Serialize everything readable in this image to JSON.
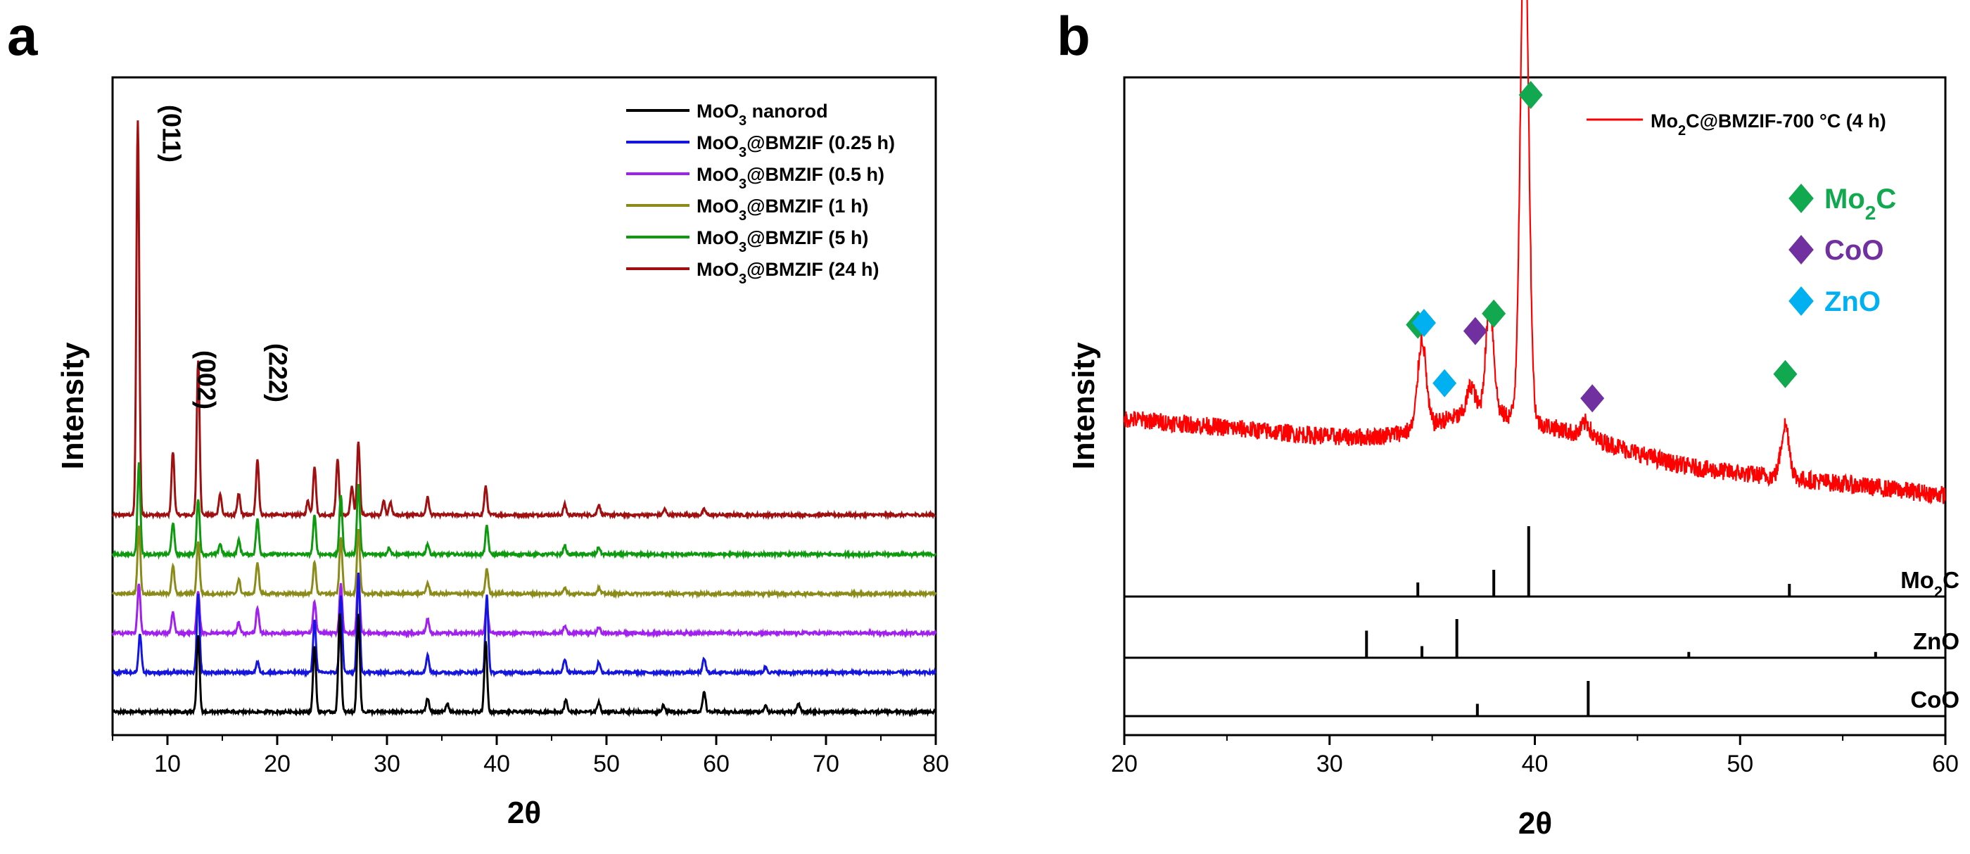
{
  "chart_data": [
    {
      "panel": "a",
      "type": "line",
      "xlabel": "2θ",
      "ylabel": "Intensity",
      "xlim": [
        5,
        80
      ],
      "x_ticks": [
        10,
        20,
        30,
        40,
        50,
        60,
        70,
        80
      ],
      "y_ticks_shown": false,
      "legend_position": "top-right",
      "series": [
        {
          "name": "MoO3 nanorod",
          "name_main": "MoO",
          "name_sub": "3",
          "name_rest": " nanorod",
          "color": "#000000",
          "offset": 0,
          "peaks": [
            [
              12.8,
              110
            ],
            [
              23.4,
              95
            ],
            [
              25.7,
              140
            ],
            [
              27.4,
              140
            ],
            [
              33.7,
              20
            ],
            [
              35.5,
              12
            ],
            [
              39.0,
              100
            ],
            [
              46.3,
              18
            ],
            [
              49.3,
              15
            ],
            [
              55.2,
              10
            ],
            [
              58.9,
              30
            ],
            [
              64.5,
              10
            ],
            [
              67.5,
              12
            ]
          ]
        },
        {
          "name": "MoO3@BMZIF (0.25 h)",
          "name_main": "MoO",
          "name_sub": "3",
          "name_rest": "@BMZIF (0.25 h)",
          "color": "#1515e0",
          "offset": 1,
          "peaks": [
            [
              7.5,
              55
            ],
            [
              12.8,
              110
            ],
            [
              18.2,
              15
            ],
            [
              23.4,
              75
            ],
            [
              25.8,
              110
            ],
            [
              27.4,
              140
            ],
            [
              33.7,
              25
            ],
            [
              39.1,
              110
            ],
            [
              46.2,
              20
            ],
            [
              49.3,
              15
            ],
            [
              58.9,
              20
            ],
            [
              64.5,
              8
            ]
          ]
        },
        {
          "name": "MoO3@BMZIF (0.5 h)",
          "name_main": "MoO",
          "name_sub": "3",
          "name_rest": "@BMZIF (0.5 h)",
          "color": "#a020f0",
          "offset": 2,
          "peaks": [
            [
              7.4,
              70
            ],
            [
              10.5,
              30
            ],
            [
              12.8,
              60
            ],
            [
              16.5,
              15
            ],
            [
              18.2,
              35
            ],
            [
              23.4,
              45
            ],
            [
              25.8,
              70
            ],
            [
              27.4,
              85
            ],
            [
              33.7,
              20
            ],
            [
              39.1,
              40
            ],
            [
              46.2,
              10
            ],
            [
              49.3,
              8
            ]
          ]
        },
        {
          "name": "MoO3@BMZIF (1 h)",
          "name_main": "MoO",
          "name_sub": "3",
          "name_rest": "@BMZIF (1 h)",
          "color": "#8b8b1a",
          "offset": 3,
          "peaks": [
            [
              7.4,
              95
            ],
            [
              10.5,
              40
            ],
            [
              12.8,
              75
            ],
            [
              16.5,
              20
            ],
            [
              18.2,
              45
            ],
            [
              23.4,
              45
            ],
            [
              25.8,
              80
            ],
            [
              27.4,
              90
            ],
            [
              33.7,
              15
            ],
            [
              39.1,
              35
            ],
            [
              46.2,
              10
            ],
            [
              49.3,
              8
            ]
          ]
        },
        {
          "name": "MoO3@BMZIF (5 h)",
          "name_main": "MoO",
          "name_sub": "3",
          "name_rest": "@BMZIF (5 h)",
          "color": "#0e9a0e",
          "offset": 4,
          "peaks": [
            [
              7.4,
              130
            ],
            [
              10.5,
              45
            ],
            [
              12.8,
              80
            ],
            [
              14.8,
              15
            ],
            [
              16.5,
              20
            ],
            [
              18.2,
              50
            ],
            [
              23.4,
              55
            ],
            [
              25.8,
              85
            ],
            [
              27.4,
              100
            ],
            [
              30.2,
              10
            ],
            [
              33.7,
              15
            ],
            [
              39.1,
              40
            ],
            [
              46.2,
              12
            ],
            [
              49.3,
              10
            ]
          ]
        },
        {
          "name": "MoO3@BMZIF (24 h)",
          "name_main": "MoO",
          "name_sub": "3",
          "name_rest": "@BMZIF (24 h)",
          "color": "#a01010",
          "offset": 5,
          "peaks": [
            [
              7.3,
              560
            ],
            [
              10.5,
              90
            ],
            [
              12.8,
              220
            ],
            [
              14.8,
              30
            ],
            [
              16.5,
              30
            ],
            [
              18.2,
              80
            ],
            [
              22.8,
              20
            ],
            [
              23.4,
              70
            ],
            [
              25.5,
              80
            ],
            [
              26.8,
              40
            ],
            [
              27.4,
              105
            ],
            [
              29.7,
              20
            ],
            [
              30.3,
              18
            ],
            [
              33.7,
              25
            ],
            [
              39.0,
              40
            ],
            [
              46.2,
              15
            ],
            [
              49.3,
              15
            ],
            [
              55.3,
              8
            ],
            [
              58.9,
              8
            ]
          ]
        }
      ],
      "annotations": [
        {
          "text": "(011)",
          "x": 8.8
        },
        {
          "text": "(002)",
          "x": 12.0
        },
        {
          "text": "(222)",
          "x": 18.5
        }
      ]
    },
    {
      "panel": "b",
      "type": "line",
      "xlabel": "2θ",
      "ylabel": "Intensity",
      "xlim": [
        20,
        60
      ],
      "x_ticks": [
        20,
        30,
        40,
        50,
        60
      ],
      "y_ticks_shown": false,
      "series": [
        {
          "name": "Mo2C@BMZIF-700 °C (4 h)",
          "name_a": "Mo",
          "name_sub": "2",
          "name_b": "C@BMZIF-700 °C (4 h)",
          "color": "#ff0000",
          "peaks": [
            [
              34.5,
              125
            ],
            [
              36.9,
              40
            ],
            [
              37.8,
              150
            ],
            [
              39.5,
              730
            ],
            [
              42.5,
              20
            ],
            [
              52.2,
              75
            ]
          ]
        }
      ],
      "reference_patterns": [
        {
          "phase": "Mo2C",
          "label_main": "Mo",
          "label_sub": "2",
          "label_rest": "C",
          "lines": [
            [
              34.3,
              0.2
            ],
            [
              38.0,
              0.38
            ],
            [
              39.7,
              1.0
            ],
            [
              52.4,
              0.18
            ]
          ]
        },
        {
          "phase": "ZnO",
          "label_main": "ZnO",
          "label_sub": "",
          "label_rest": "",
          "lines": [
            [
              31.8,
              0.7
            ],
            [
              34.5,
              0.3
            ],
            [
              36.2,
              1.0
            ],
            [
              47.5,
              0.15
            ],
            [
              56.6,
              0.15
            ]
          ]
        },
        {
          "phase": "CoO",
          "label_main": "CoO",
          "label_sub": "",
          "label_rest": "",
          "lines": [
            [
              37.2,
              0.35
            ],
            [
              42.6,
              1.0
            ]
          ]
        }
      ],
      "phase_markers": [
        {
          "phase": "Mo2C",
          "label_main": "Mo",
          "label_sub": "2",
          "label_rest": "C",
          "color": "#11a850",
          "positions": [
            [
              34.3,
              125
            ],
            [
              38.0,
              120
            ],
            [
              39.8,
              730
            ],
            [
              52.2,
              125
            ]
          ]
        },
        {
          "phase": "CoO",
          "label_main": "CoO",
          "label_sub": "",
          "label_rest": "",
          "color": "#7030a0",
          "positions": [
            [
              37.1,
              95
            ],
            [
              42.8,
              35
            ]
          ]
        },
        {
          "phase": "ZnO",
          "label_main": "ZnO",
          "label_sub": "",
          "label_rest": "",
          "color": "#00b0f0",
          "positions": [
            [
              34.6,
              125
            ],
            [
              35.6,
              30
            ]
          ]
        }
      ]
    }
  ]
}
